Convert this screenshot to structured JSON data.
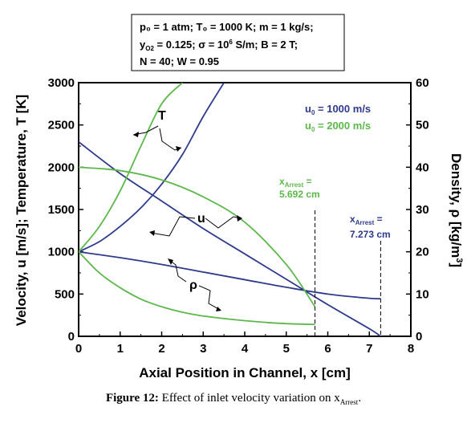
{
  "chart_data": {
    "type": "line",
    "xlabel": "Axial Position in Channel, x [cm]",
    "ylabel_left": "Velocity, u [m/s]; Temperature, T [K]",
    "ylabel_right_main": "Density, ρ [kg/m",
    "ylabel_right_sup": "3",
    "ylabel_right_end": "]",
    "xlim": [
      0,
      8
    ],
    "ylim_left": [
      0,
      3000
    ],
    "ylim_right": [
      0,
      60
    ],
    "x_ticks": [
      "0",
      "1",
      "2",
      "3",
      "4",
      "5",
      "6",
      "7",
      "8"
    ],
    "y_left_ticks": [
      "0",
      "500",
      "1000",
      "1500",
      "2000",
      "2500",
      "3000"
    ],
    "y_right_ticks": [
      "0",
      "10",
      "20",
      "30",
      "40",
      "50",
      "60"
    ],
    "grid": false,
    "params": {
      "line1": "p₀ = 1 atm; T₀ = 1000 K; m = 1 kg/s;",
      "line2_a": "y",
      "line2_sub": "O2",
      "line2_b": " = 0.125; σ = 10",
      "line2_sup": "6",
      "line2_c": " S/m; B = 2 T;",
      "line3": "N = 40; W = 0.95"
    },
    "legend": [
      {
        "main": "u",
        "sub": "0",
        "rest": " = 1000 m/s",
        "color": "#2e3a8c"
      },
      {
        "main": "u",
        "sub": "0",
        "rest": " = 2000 m/s",
        "color": "#5cb84a"
      }
    ],
    "arrest": [
      {
        "main": "x",
        "sub": "Arrest",
        "eq": " =",
        "value": "5.692 cm",
        "x": 5.692,
        "color": "#5cb84a"
      },
      {
        "main": "x",
        "sub": "Arrest",
        "eq": " =",
        "value": "7.273 cm",
        "x": 7.273,
        "color": "#2e3a8c"
      }
    ],
    "annotation_labels": {
      "T": "T",
      "u": "u",
      "rho": "ρ"
    },
    "series": [
      {
        "name": "T, u₀ = 1000 m/s",
        "color": "#2e3a8c",
        "axis": "left",
        "x": [
          0,
          0.5,
          1,
          1.5,
          2,
          2.5,
          3,
          3.5
        ],
        "y": [
          1000,
          1120,
          1300,
          1520,
          1800,
          2150,
          2600,
          3000
        ]
      },
      {
        "name": "u, u₀ = 1000 m/s",
        "color": "#2e3a8c",
        "axis": "left",
        "x": [
          0,
          1,
          2,
          3,
          4,
          5,
          6,
          7,
          7.273
        ],
        "y": [
          1000,
          930,
          850,
          760,
          670,
          580,
          500,
          450,
          445
        ]
      },
      {
        "name": "ρ, u₀ = 1000 m/s",
        "color": "#2e3a8c",
        "axis": "right",
        "x": [
          0,
          1,
          2,
          3,
          4,
          5,
          6,
          7,
          7.273
        ],
        "y": [
          46,
          38.5,
          32,
          25.5,
          19.5,
          13.5,
          7.5,
          1.8,
          0
        ]
      },
      {
        "name": "T, u₀ = 2000 m/s",
        "color": "#5cb84a",
        "axis": "left",
        "x": [
          0,
          0.5,
          1,
          1.5,
          2,
          2.5
        ],
        "y": [
          1000,
          1300,
          1720,
          2250,
          2750,
          3000
        ]
      },
      {
        "name": "u, u₀ = 2000 m/s",
        "color": "#5cb84a",
        "axis": "left",
        "x": [
          0,
          1,
          2,
          3,
          4,
          5,
          5.692
        ],
        "y": [
          2000,
          1960,
          1850,
          1650,
          1350,
          850,
          350
        ]
      },
      {
        "name": "ρ, u₀ = 2000 m/s",
        "color": "#5cb84a",
        "axis": "right",
        "x": [
          0,
          0.5,
          1,
          1.5,
          2,
          2.5,
          3,
          3.5,
          4,
          4.5,
          5,
          5.692
        ],
        "y": [
          20,
          15,
          11.5,
          8.8,
          7,
          5.7,
          4.8,
          4.2,
          3.7,
          3.3,
          3.0,
          2.8
        ]
      }
    ]
  },
  "caption": {
    "label": "Figure 12:",
    "text": " Effect of inlet velocity variation on x",
    "sub": "Arrest",
    "end": "."
  }
}
